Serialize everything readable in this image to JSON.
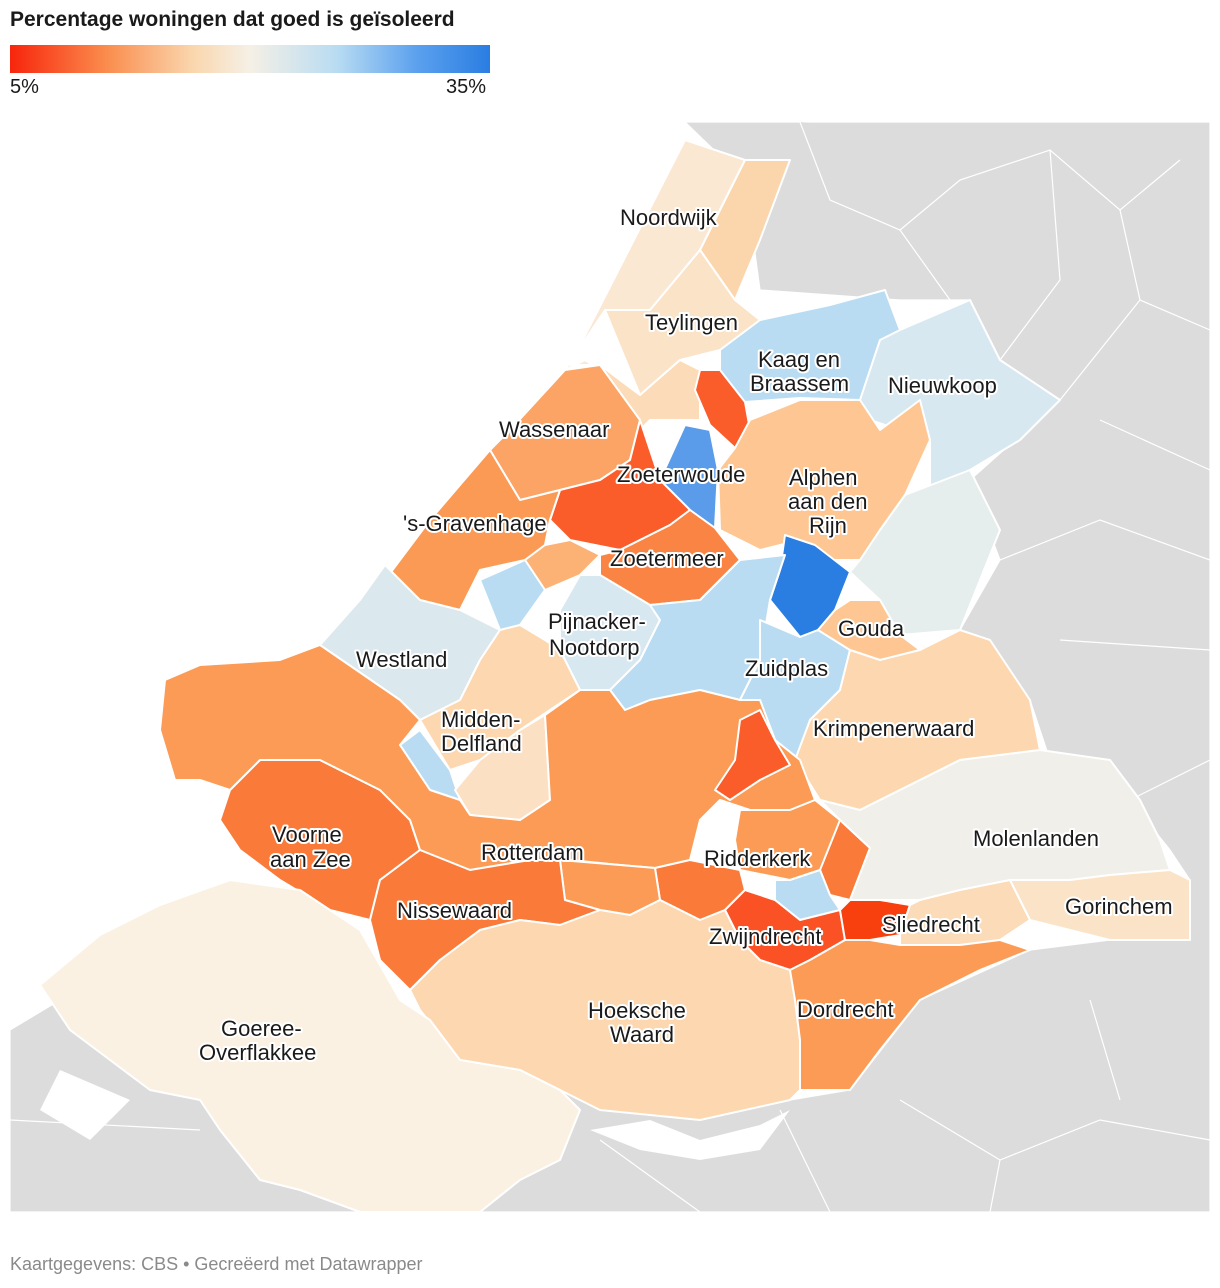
{
  "title": "Percentage woningen dat goed is geïsoleerd",
  "legend": {
    "min_label": "5%",
    "max_label": "35%",
    "min_value": 5,
    "max_value": 35,
    "colors": [
      "#f8250c",
      "#fa8c4d",
      "#fad6ad",
      "#f5f0e6",
      "#b9dcf2",
      "#5aa0ee",
      "#2a7de1"
    ]
  },
  "credit": "Kaartgegevens: CBS • Gecreëerd met Datawrapper",
  "colors": {
    "background_land": "#dcdcdc",
    "water": "#ffffff",
    "border": "#ffffff"
  },
  "labels": {
    "noordwijk": "Noordwijk",
    "teylingen": "Teylingen",
    "kaag_1": "Kaag en",
    "kaag_2": "Braassem",
    "nieuwkoop": "Nieuwkoop",
    "wassenaar": "Wassenaar",
    "zoeterwoude": "Zoeterwoude",
    "alphen_1": "Alphen",
    "alphen_2": "aan den",
    "alphen_3": "Rijn",
    "gravenhage": "'s-Gravenhage",
    "zoetermeer": "Zoetermeer",
    "pijnacker_1": "Pijnacker-",
    "pijnacker_2": "Nootdorp",
    "gouda": "Gouda",
    "westland": "Westland",
    "zuidplas": "Zuidplas",
    "midden_1": "Midden-",
    "midden_2": "Delfland",
    "krimpenerwaard": "Krimpenerwaard",
    "voorne_1": "Voorne",
    "voorne_2": "aan Zee",
    "rotterdam": "Rotterdam",
    "ridderkerk": "Ridderkerk",
    "molenlanden": "Molenlanden",
    "nissewaard": "Nissewaard",
    "zwijndrecht": "Zwijndrecht",
    "sliedrecht": "Sliedrecht",
    "gorinchem": "Gorinchem",
    "hoeksche_1": "Hoeksche",
    "hoeksche_2": "Waard",
    "dordrecht": "Dordrecht",
    "goeree_1": "Goeree-",
    "goeree_2": "Overflakkee"
  }
}
